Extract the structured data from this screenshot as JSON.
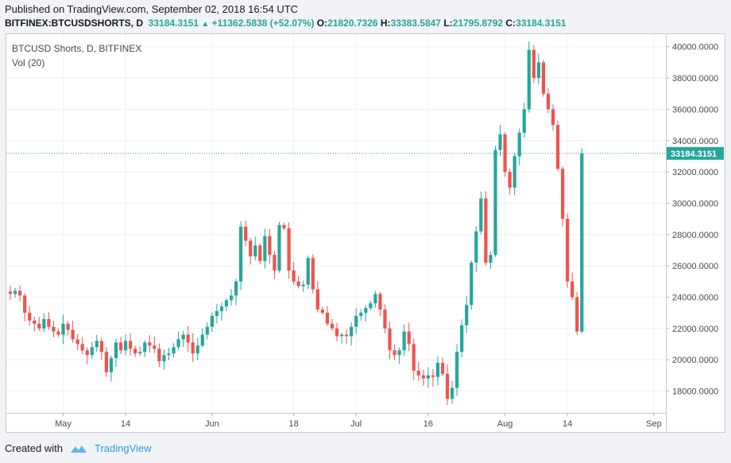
{
  "header": {
    "published": "Published on TradingView.com, September 02, 2018 16:54 UTC",
    "symbol": "BITFINEX:BTCUSDSHORTS, D",
    "last": "33184.3151",
    "change": "+11362.5838 (+52.07%)",
    "o_label": "O:",
    "o_value": "21820.7326",
    "h_label": "H:",
    "h_value": "33383.5847",
    "l_label": "L:",
    "l_value": "21795.8792",
    "c_label": "C:",
    "c_value": "33184.3151"
  },
  "legend": {
    "series": "BTCUSD Shorts, D, BITFINEX",
    "volume": "Vol (20)"
  },
  "footer": {
    "created_with": "Created with",
    "brand": "TradingView"
  },
  "colors": {
    "up": "#26a69a",
    "down": "#ef5350",
    "grid": "#eef0f3",
    "axis_text": "#4a4a4a",
    "last_price_bg": "#26a69a"
  },
  "chart_data": {
    "type": "candlestick",
    "title": "BTCUSD Shorts, D, BITFINEX",
    "last_price_label": "33184.3151",
    "ylim": [
      16600,
      40800
    ],
    "y_ticks": [
      18000,
      20000,
      22000,
      24000,
      26000,
      28000,
      30000,
      32000,
      34000,
      36000,
      38000,
      40000
    ],
    "y_tick_labels": [
      "18000.0000",
      "20000.0000",
      "22000.0000",
      "24000.0000",
      "26000.0000",
      "28000.0000",
      "30000.0000",
      "32000.0000",
      "34000.0000",
      "36000.0000",
      "38000.0000",
      "40000.0000"
    ],
    "x_start": "2018-04-20",
    "x_end": "2018-09-02",
    "x_ticks": [
      {
        "date": "2018-05-01",
        "label": "May"
      },
      {
        "date": "2018-05-14",
        "label": "14"
      },
      {
        "date": "2018-06-01",
        "label": "Jun"
      },
      {
        "date": "2018-06-18",
        "label": "18"
      },
      {
        "date": "2018-07-01",
        "label": "Jul"
      },
      {
        "date": "2018-07-16",
        "label": "16"
      },
      {
        "date": "2018-08-01",
        "label": "Aug"
      },
      {
        "date": "2018-08-14",
        "label": "14"
      },
      {
        "date": "2018-09-01",
        "label": "Sep"
      }
    ],
    "closes": [
      24200,
      24400,
      24100,
      23000,
      22500,
      22300,
      22000,
      22600,
      22100,
      21800,
      21600,
      22300,
      21900,
      21300,
      21000,
      20600,
      20300,
      20800,
      21200,
      20500,
      19200,
      20100,
      21100,
      20600,
      21200,
      20700,
      20400,
      20500,
      21100,
      20900,
      20700,
      19900,
      20300,
      20400,
      20800,
      21300,
      21600,
      21100,
      20400,
      20900,
      21600,
      22100,
      22800,
      23100,
      23400,
      23800,
      24100,
      25000,
      28500,
      27600,
      26600,
      27300,
      26300,
      27900,
      26700,
      25700,
      28600,
      28400,
      25700,
      25000,
      24700,
      24800,
      26500,
      24500,
      23200,
      23000,
      22300,
      22000,
      21500,
      21600,
      21500,
      22100,
      22800,
      23000,
      23300,
      23600,
      24200,
      23200,
      22000,
      20600,
      20300,
      20600,
      21800,
      21000,
      19300,
      19000,
      18800,
      19000,
      18900,
      19800,
      19100,
      17500,
      18200,
      20500,
      22200,
      23500,
      26200,
      28200,
      30300,
      26200,
      26700,
      33400,
      34400,
      32000,
      31000,
      33000,
      34500,
      36000,
      39800,
      38000,
      39000,
      37000,
      36000,
      35000,
      32200,
      29000,
      25000,
      24000,
      21800,
      33184
    ]
  }
}
